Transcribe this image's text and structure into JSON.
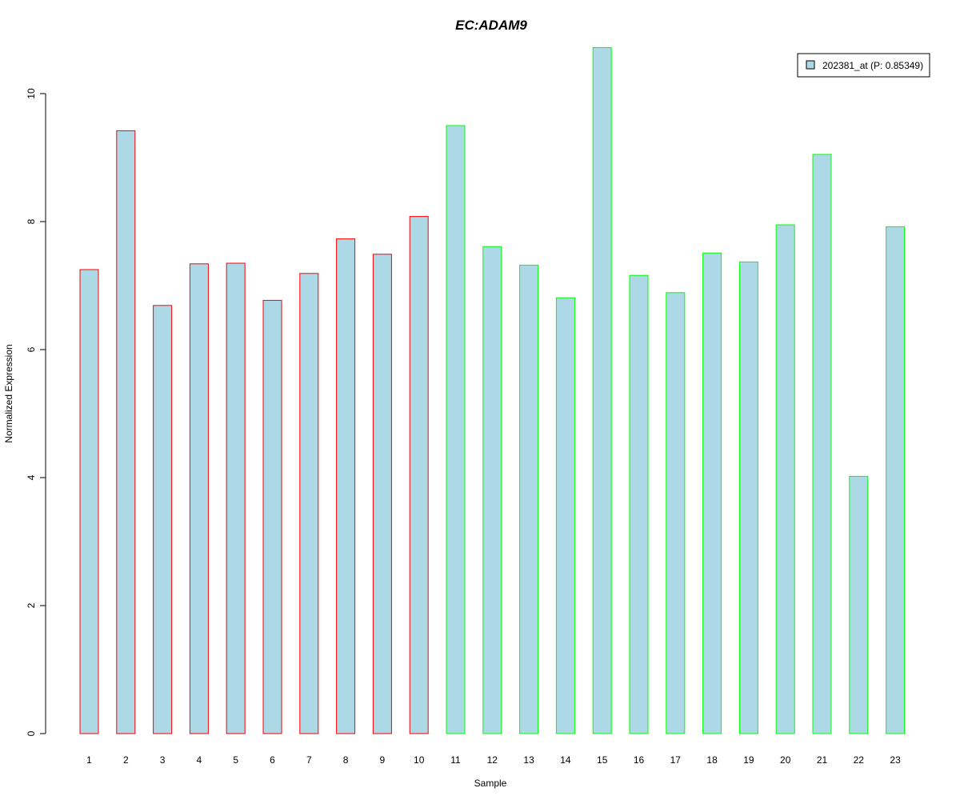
{
  "chart_data": {
    "type": "bar",
    "title": "EC:ADAM9",
    "title_color": "#0000CC",
    "xlabel": "Sample",
    "ylabel": "Normalized Expression",
    "ylim": [
      0,
      10.8
    ],
    "yticks": [
      0,
      2,
      4,
      6,
      8,
      10
    ],
    "grid": false,
    "legend": {
      "position": "top-right",
      "entries": [
        {
          "label": "202381_at (P: 0.85349)",
          "color": "#ADD8E6"
        }
      ]
    },
    "bar_fill": "#ADD8E6",
    "group_colors": {
      "group1": "#FF0000",
      "group2": "#00FF00"
    },
    "categories": [
      "1",
      "2",
      "3",
      "4",
      "5",
      "6",
      "7",
      "8",
      "9",
      "10",
      "11",
      "12",
      "13",
      "14",
      "15",
      "16",
      "17",
      "18",
      "19",
      "20",
      "21",
      "22",
      "23"
    ],
    "series": [
      {
        "values": [
          7.25,
          9.42,
          6.69,
          7.34,
          7.35,
          6.77,
          7.19,
          7.73,
          7.49,
          8.08,
          9.5,
          7.61,
          7.32,
          6.81,
          10.72,
          7.16,
          6.89,
          7.51,
          7.37,
          7.95,
          9.05,
          4.02,
          7.92
        ],
        "groups": [
          "group1",
          "group1",
          "group1",
          "group1",
          "group1",
          "group1",
          "group1",
          "group1",
          "group1",
          "group1",
          "group2",
          "group2",
          "group2",
          "group2",
          "group2",
          "group2",
          "group2",
          "group2",
          "group2",
          "group2",
          "group2",
          "group2",
          "group2"
        ]
      }
    ]
  }
}
